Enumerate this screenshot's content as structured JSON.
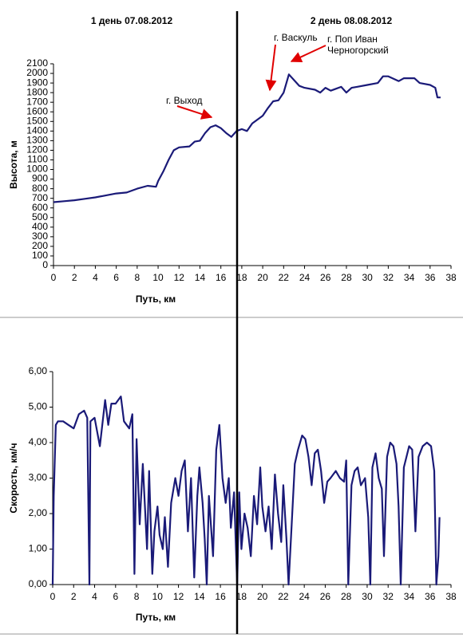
{
  "day_labels": [
    "1 день 07.08.2012",
    "2 день 08.08.2012"
  ],
  "chart_data": [
    {
      "type": "line",
      "xlabel": "Путь, км",
      "ylabel": "Высота, м",
      "xlim": [
        0,
        38
      ],
      "xticks": [
        0,
        2,
        4,
        6,
        8,
        10,
        12,
        14,
        16,
        18,
        20,
        22,
        24,
        26,
        28,
        30,
        32,
        34,
        36,
        38
      ],
      "ylim": [
        0,
        2100
      ],
      "yticks": [
        0,
        100,
        200,
        300,
        400,
        500,
        600,
        700,
        800,
        900,
        1000,
        1100,
        1200,
        1300,
        1400,
        1500,
        1600,
        1700,
        1800,
        1900,
        2000,
        2100
      ],
      "series": [
        {
          "color": "#1a1a78",
          "x": [
            0,
            1,
            2,
            3,
            4,
            5,
            6,
            7,
            8,
            9,
            9.8,
            10,
            10.5,
            11,
            11.5,
            12,
            13,
            13.5,
            14,
            14.5,
            15,
            15.5,
            16,
            16.5,
            17,
            17.5,
            18,
            18.5,
            19,
            20,
            20.5,
            21,
            21.5,
            22,
            22.5,
            23,
            23.5,
            24,
            25,
            25.5,
            26,
            26.5,
            27,
            27.5,
            28,
            28.5,
            29,
            30,
            31,
            31.5,
            32,
            33,
            33.5,
            34.5,
            35,
            36,
            36.5,
            36.7,
            37
          ],
          "values": [
            660,
            670,
            680,
            695,
            710,
            730,
            750,
            760,
            800,
            830,
            820,
            880,
            980,
            1100,
            1200,
            1230,
            1240,
            1290,
            1300,
            1380,
            1440,
            1460,
            1430,
            1380,
            1340,
            1400,
            1420,
            1400,
            1480,
            1560,
            1640,
            1710,
            1720,
            1800,
            1990,
            1930,
            1870,
            1850,
            1830,
            1800,
            1850,
            1820,
            1840,
            1860,
            1800,
            1850,
            1860,
            1880,
            1900,
            1970,
            1970,
            1920,
            1950,
            1950,
            1900,
            1880,
            1850,
            1750,
            1750
          ]
        }
      ],
      "annotations": [
        {
          "lines": [
            "г. Выход"
          ]
        },
        {
          "lines": [
            "г. Васкуль"
          ]
        },
        {
          "lines": [
            "г. Поп Иван",
            "Черногорский"
          ]
        }
      ]
    },
    {
      "type": "line",
      "xlabel": "Путь, км",
      "ylabel": "Скорость, км/ч",
      "xlim": [
        0,
        38
      ],
      "xticks": [
        0,
        2,
        4,
        6,
        8,
        10,
        12,
        14,
        16,
        18,
        20,
        22,
        24,
        26,
        28,
        30,
        32,
        34,
        36,
        38
      ],
      "ylim": [
        0,
        6
      ],
      "yticks": [
        {
          "value": 0,
          "label": "0,00"
        },
        {
          "value": 1,
          "label": "1,00"
        },
        {
          "value": 2,
          "label": "2,00"
        },
        {
          "value": 3,
          "label": "3,00"
        },
        {
          "value": 4,
          "label": "4,00"
        },
        {
          "value": 5,
          "label": "5,00"
        },
        {
          "value": 6,
          "label": "6,00"
        }
      ],
      "series": [
        {
          "color": "#1a1a78",
          "x": [
            0,
            0.1,
            0.3,
            0.5,
            1,
            1.5,
            2,
            2.5,
            3,
            3.3,
            3.5,
            3.6,
            4,
            4.5,
            5,
            5.3,
            5.6,
            6,
            6.5,
            6.8,
            7.3,
            7.6,
            7.8,
            8,
            8.3,
            8.6,
            9,
            9.2,
            9.5,
            9.7,
            10,
            10.2,
            10.5,
            10.7,
            11,
            11.3,
            11.7,
            12,
            12.3,
            12.6,
            12.9,
            13.2,
            13.5,
            13.8,
            14,
            14.3,
            14.5,
            14.7,
            14.9,
            15.3,
            15.6,
            15.9,
            16.2,
            16.5,
            16.8,
            17,
            17.3,
            17.6,
            17.8,
            18,
            18.3,
            18.6,
            18.9,
            19.2,
            19.5,
            19.8,
            20,
            20.3,
            20.6,
            20.9,
            21.2,
            21.5,
            21.8,
            22,
            22.3,
            22.5,
            22.8,
            23.1,
            23.4,
            23.8,
            24.1,
            24.4,
            24.7,
            25,
            25.3,
            25.6,
            25.9,
            26.2,
            26.5,
            27,
            27.4,
            27.8,
            28,
            28.2,
            28.5,
            28.8,
            29.1,
            29.4,
            29.8,
            30.1,
            30.3,
            30.5,
            30.8,
            31.1,
            31.4,
            31.6,
            31.9,
            32.2,
            32.5,
            32.8,
            33,
            33.2,
            33.5,
            34,
            34.3,
            34.6,
            34.9,
            35.3,
            35.7,
            36.1,
            36.4,
            36.6,
            36.8,
            36.9
          ],
          "values": [
            0,
            2.5,
            4.5,
            4.6,
            4.6,
            4.5,
            4.4,
            4.8,
            4.9,
            4.7,
            0,
            4.6,
            4.7,
            3.9,
            5.2,
            4.5,
            5.1,
            5.1,
            5.3,
            4.6,
            4.4,
            4.8,
            0.3,
            4.1,
            1.7,
            3.4,
            1.0,
            3.2,
            0.3,
            1.5,
            2.2,
            1.4,
            1.0,
            1.9,
            0.5,
            2.3,
            3.0,
            2.5,
            3.2,
            3.5,
            1.5,
            3.0,
            0.2,
            2.5,
            3.3,
            2.3,
            1.3,
            0,
            2.5,
            0.8,
            3.8,
            4.5,
            3.0,
            2.3,
            3.0,
            1.6,
            2.6,
            0,
            2.6,
            1.0,
            2.0,
            1.6,
            0.8,
            2.5,
            1.7,
            3.3,
            2.2,
            1.5,
            2.2,
            1.0,
            3.1,
            2.0,
            1.2,
            2.8,
            1.3,
            0,
            1.7,
            3.4,
            3.8,
            4.2,
            4.1,
            3.6,
            2.8,
            3.7,
            3.8,
            3.2,
            2.3,
            2.9,
            3.0,
            3.2,
            3.0,
            2.9,
            3.5,
            0,
            2.8,
            3.2,
            3.3,
            2.8,
            3.0,
            1.9,
            0,
            3.3,
            3.7,
            3.0,
            2.7,
            0.8,
            3.6,
            4.0,
            3.9,
            3.4,
            2.2,
            0,
            3.3,
            3.9,
            3.8,
            1.5,
            3.6,
            3.9,
            4.0,
            3.9,
            3.2,
            0,
            0.8,
            1.9
          ]
        }
      ]
    }
  ]
}
